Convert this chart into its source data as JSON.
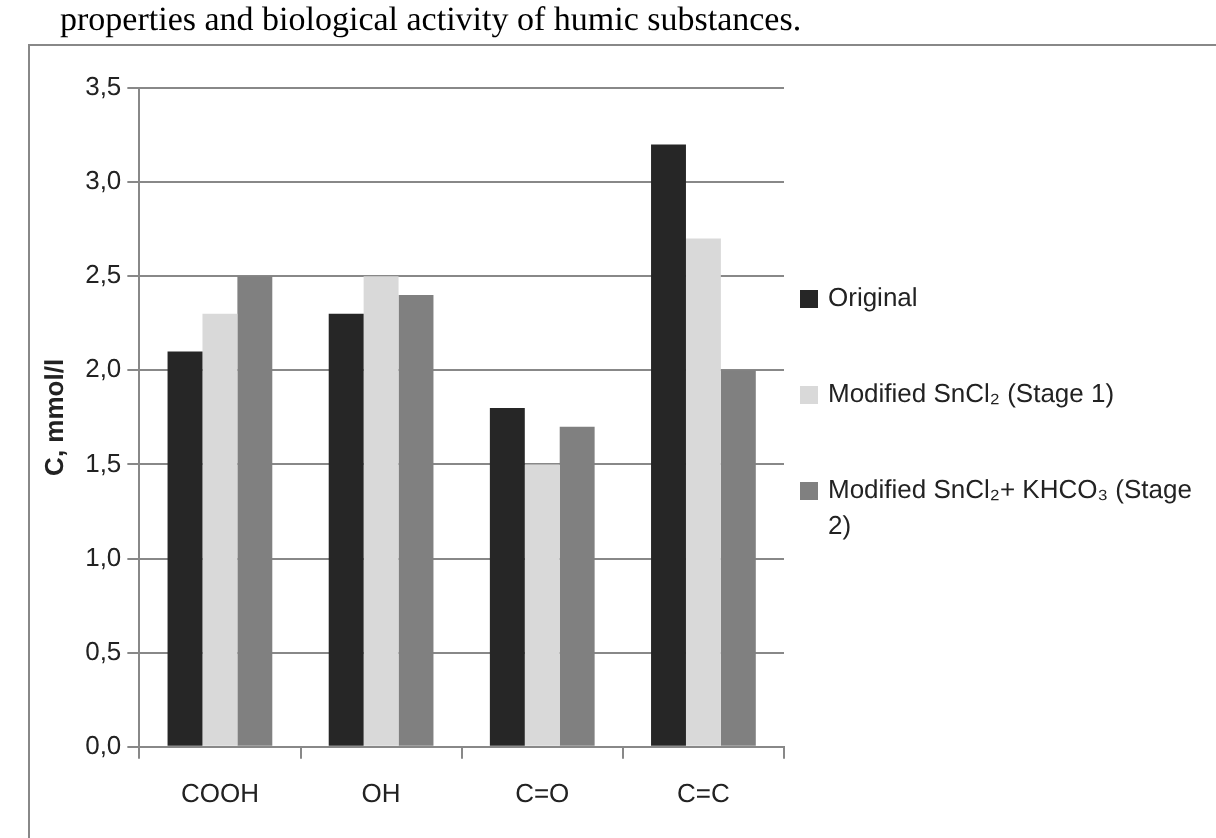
{
  "chart_data": {
    "type": "bar",
    "ylabel": "C, mmol/l",
    "annotations": [
      "properties and biological activity of humic substances."
    ],
    "categories": [
      "COOH",
      "OH",
      "C=O",
      "C=C"
    ],
    "series": [
      {
        "name": "Original",
        "color": "#262626",
        "values": [
          2.1,
          2.3,
          1.8,
          3.2
        ]
      },
      {
        "name": "Modified SnCl₂ (Stage 1)",
        "color": "#d9d9d9",
        "values": [
          2.3,
          2.5,
          1.5,
          2.7
        ]
      },
      {
        "name": "Modified SnCl₂+ KHCO₃ (Stage 2)",
        "color": "#808080",
        "values": [
          2.5,
          2.4,
          1.7,
          2.0
        ]
      }
    ],
    "ylim": [
      0,
      3.5
    ],
    "yticks": [
      {
        "value": 0,
        "label": "0,0"
      },
      {
        "value": 0.5,
        "label": "0,5"
      },
      {
        "value": 1,
        "label": "1,0"
      },
      {
        "value": 1.5,
        "label": "1,5"
      },
      {
        "value": 2,
        "label": "2,0"
      },
      {
        "value": 2.5,
        "label": "2,5"
      },
      {
        "value": 3,
        "label": "3,0"
      },
      {
        "value": 3.5,
        "label": "3,5"
      }
    ],
    "grid": "y",
    "legend": "right"
  }
}
